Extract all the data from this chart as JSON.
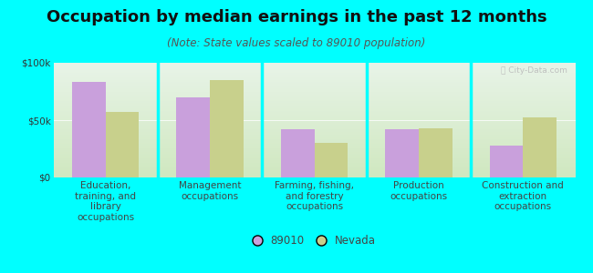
{
  "title": "Occupation by median earnings in the past 12 months",
  "subtitle": "(Note: State values scaled to 89010 population)",
  "categories": [
    "Education,\ntraining, and\nlibrary\noccupations",
    "Management\noccupations",
    "Farming, fishing,\nand forestry\noccupations",
    "Production\noccupations",
    "Construction and\nextraction\noccupations"
  ],
  "values_89010": [
    83000,
    70000,
    42000,
    42000,
    28000
  ],
  "values_nevada": [
    57000,
    85000,
    30000,
    43000,
    52000
  ],
  "color_89010": "#c9a0dc",
  "color_nevada": "#c8d08c",
  "ylim": [
    0,
    100000
  ],
  "ytick_labels": [
    "$0",
    "$50k",
    "$100k"
  ],
  "background_color": "#00ffff",
  "plot_bg_top": "#e8f4e8",
  "plot_bg_bottom": "#d0e8c0",
  "legend_label_89010": "89010",
  "legend_label_nevada": "Nevada",
  "bar_width": 0.32,
  "title_fontsize": 13,
  "subtitle_fontsize": 8.5,
  "tick_fontsize": 7.5,
  "legend_fontsize": 8.5,
  "separator_color": "#00ffff",
  "ytick_color": "#333333",
  "xtick_color": "#444444",
  "subtitle_color": "#555555",
  "watermark_color": "#bbbbbb"
}
